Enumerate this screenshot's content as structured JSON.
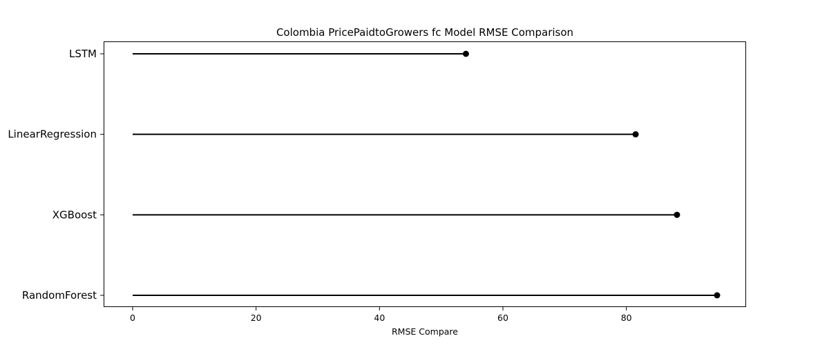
{
  "chart_data": {
    "type": "lollipop",
    "title": "Colombia PricePaidtoGrowers fc Model RMSE Comparison",
    "xlabel": "RMSE Compare",
    "ylabel": "",
    "categories": [
      "LSTM",
      "LinearRegression",
      "XGBoost",
      "RandomForest"
    ],
    "values": [
      54.0,
      81.5,
      88.2,
      94.7
    ],
    "xlim": [
      -4.7,
      99.4
    ],
    "xticks": [
      0,
      20,
      40,
      60,
      80
    ],
    "orientation": "horizontal",
    "grid": false,
    "legend": "none",
    "line_color": "#000000",
    "marker_color": "#000000"
  }
}
